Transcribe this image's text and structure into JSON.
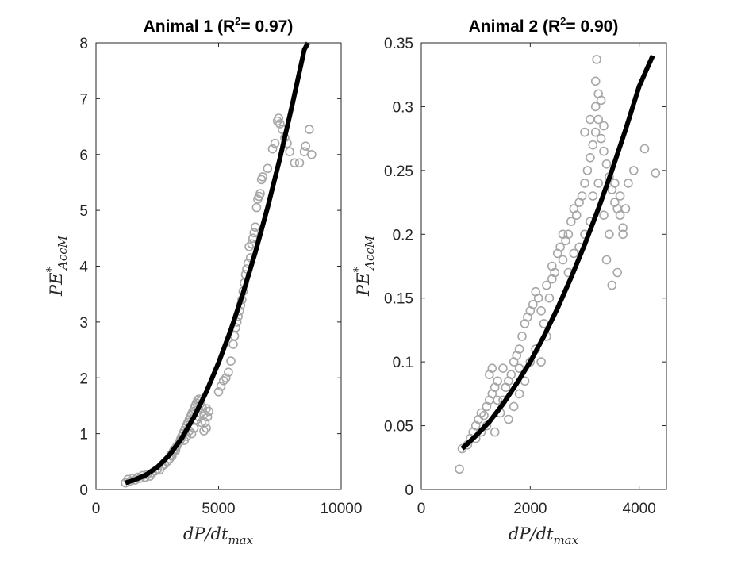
{
  "chart_data": [
    {
      "type": "scatter",
      "title_main": "Animal 1 (R",
      "title_sup": "2",
      "title_end": "= 0.97)",
      "xlabel_main": "dP/dt",
      "xlabel_sub": "max",
      "ylabel_main": "PE",
      "ylabel_sup": "*",
      "ylabel_sub": "AccM",
      "xlim": [
        0,
        10000
      ],
      "ylim": [
        0,
        8
      ],
      "xticks": [
        0,
        5000,
        10000
      ],
      "yticks": [
        0,
        1,
        2,
        3,
        4,
        5,
        6,
        7,
        8
      ],
      "xtick_labels": [
        "0",
        "5000",
        "10000"
      ],
      "ytick_labels": [
        "0",
        "1",
        "2",
        "3",
        "4",
        "5",
        "6",
        "7",
        "8"
      ],
      "grid": false,
      "marker_color": "#a6a6a6",
      "fit_color": "#000000",
      "scatter_points": [
        [
          1200,
          0.12
        ],
        [
          1300,
          0.18
        ],
        [
          1400,
          0.15
        ],
        [
          1500,
          0.2
        ],
        [
          1600,
          0.17
        ],
        [
          1700,
          0.22
        ],
        [
          1800,
          0.2
        ],
        [
          1900,
          0.25
        ],
        [
          2000,
          0.22
        ],
        [
          2100,
          0.27
        ],
        [
          2200,
          0.24
        ],
        [
          2300,
          0.3
        ],
        [
          2400,
          0.33
        ],
        [
          2500,
          0.36
        ],
        [
          2600,
          0.35
        ],
        [
          2700,
          0.42
        ],
        [
          2800,
          0.45
        ],
        [
          2900,
          0.5
        ],
        [
          3000,
          0.55
        ],
        [
          3050,
          0.62
        ],
        [
          3100,
          0.6
        ],
        [
          3150,
          0.68
        ],
        [
          3200,
          0.72
        ],
        [
          3250,
          0.7
        ],
        [
          3300,
          0.78
        ],
        [
          3400,
          0.85
        ],
        [
          3450,
          0.9
        ],
        [
          3500,
          0.95
        ],
        [
          3550,
          1.0
        ],
        [
          3600,
          1.05
        ],
        [
          3650,
          1.1
        ],
        [
          3700,
          1.15
        ],
        [
          3750,
          1.2
        ],
        [
          3800,
          1.25
        ],
        [
          3850,
          1.3
        ],
        [
          3900,
          1.35
        ],
        [
          3950,
          1.4
        ],
        [
          4000,
          1.45
        ],
        [
          4050,
          1.5
        ],
        [
          4100,
          1.55
        ],
        [
          4150,
          1.6
        ],
        [
          4200,
          1.62
        ],
        [
          4250,
          1.58
        ],
        [
          4300,
          1.5
        ],
        [
          4350,
          1.45
        ],
        [
          4400,
          1.35
        ],
        [
          4450,
          1.2
        ],
        [
          4500,
          1.1
        ],
        [
          4550,
          1.3
        ],
        [
          4600,
          1.4
        ],
        [
          3900,
          1.0
        ],
        [
          4000,
          1.1
        ],
        [
          4100,
          1.25
        ],
        [
          4200,
          1.3
        ],
        [
          4300,
          1.2
        ],
        [
          4400,
          1.05
        ],
        [
          3700,
          0.95
        ],
        [
          3600,
          0.88
        ],
        [
          3800,
          1.05
        ],
        [
          4500,
          1.45
        ],
        [
          5000,
          1.75
        ],
        [
          5100,
          1.85
        ],
        [
          5200,
          1.95
        ],
        [
          5300,
          2.0
        ],
        [
          5400,
          2.1
        ],
        [
          5500,
          2.3
        ],
        [
          5600,
          2.6
        ],
        [
          5650,
          2.75
        ],
        [
          5700,
          2.9
        ],
        [
          5750,
          3.0
        ],
        [
          5800,
          3.1
        ],
        [
          5850,
          3.2
        ],
        [
          5900,
          3.3
        ],
        [
          5950,
          3.4
        ],
        [
          6000,
          3.55
        ],
        [
          6050,
          3.7
        ],
        [
          6100,
          3.85
        ],
        [
          6150,
          3.95
        ],
        [
          6200,
          4.05
        ],
        [
          6300,
          4.15
        ],
        [
          6250,
          4.35
        ],
        [
          6350,
          4.4
        ],
        [
          6400,
          4.5
        ],
        [
          6450,
          4.6
        ],
        [
          6500,
          4.7
        ],
        [
          6550,
          5.05
        ],
        [
          6600,
          5.2
        ],
        [
          6650,
          5.25
        ],
        [
          6700,
          5.3
        ],
        [
          6750,
          5.55
        ],
        [
          6800,
          5.6
        ],
        [
          7000,
          5.75
        ],
        [
          7200,
          6.1
        ],
        [
          7300,
          6.2
        ],
        [
          7400,
          6.6
        ],
        [
          7450,
          6.65
        ],
        [
          7500,
          6.55
        ],
        [
          7600,
          6.45
        ],
        [
          7700,
          6.3
        ],
        [
          7800,
          6.2
        ],
        [
          7900,
          6.05
        ],
        [
          8100,
          5.85
        ],
        [
          8300,
          5.85
        ],
        [
          8500,
          6.05
        ],
        [
          8550,
          6.15
        ],
        [
          8700,
          6.45
        ],
        [
          8800,
          6.0
        ]
      ],
      "fit_curve": [
        [
          1200,
          0.12
        ],
        [
          1500,
          0.16
        ],
        [
          2000,
          0.25
        ],
        [
          2500,
          0.4
        ],
        [
          3000,
          0.62
        ],
        [
          3500,
          0.92
        ],
        [
          4000,
          1.3
        ],
        [
          4500,
          1.75
        ],
        [
          5000,
          2.27
        ],
        [
          5500,
          2.86
        ],
        [
          6000,
          3.52
        ],
        [
          6500,
          4.25
        ],
        [
          7000,
          5.05
        ],
        [
          7500,
          5.93
        ],
        [
          8000,
          6.88
        ],
        [
          8500,
          7.88
        ],
        [
          8650,
          8.0
        ]
      ]
    },
    {
      "type": "scatter",
      "title_main": "Animal 2 (R",
      "title_sup": "2",
      "title_end": "= 0.90)",
      "xlabel_main": "dP/dt",
      "xlabel_sub": "max",
      "ylabel_main": "PE",
      "ylabel_sup": "*",
      "ylabel_sub": "AccM",
      "xlim": [
        0,
        4500
      ],
      "ylim": [
        0,
        0.35
      ],
      "xticks": [
        0,
        2000,
        4000
      ],
      "yticks": [
        0,
        0.05,
        0.1,
        0.15,
        0.2,
        0.25,
        0.3,
        0.35
      ],
      "xtick_labels": [
        "0",
        "2000",
        "4000"
      ],
      "ytick_labels": [
        "0",
        "0.05",
        "0.1",
        "0.15",
        "0.2",
        "0.25",
        "0.3",
        "0.35"
      ],
      "grid": false,
      "marker_color": "#a6a6a6",
      "fit_color": "#000000",
      "scatter_points": [
        [
          700,
          0.016
        ],
        [
          750,
          0.032
        ],
        [
          850,
          0.035
        ],
        [
          900,
          0.04
        ],
        [
          950,
          0.045
        ],
        [
          1000,
          0.05
        ],
        [
          1050,
          0.055
        ],
        [
          1100,
          0.06
        ],
        [
          1150,
          0.058
        ],
        [
          1200,
          0.065
        ],
        [
          1250,
          0.07
        ],
        [
          1300,
          0.075
        ],
        [
          1350,
          0.08
        ],
        [
          1400,
          0.085
        ],
        [
          1300,
          0.095
        ],
        [
          1250,
          0.09
        ],
        [
          1200,
          0.05
        ],
        [
          1350,
          0.045
        ],
        [
          1450,
          0.06
        ],
        [
          1500,
          0.07
        ],
        [
          1550,
          0.08
        ],
        [
          1600,
          0.085
        ],
        [
          1650,
          0.09
        ],
        [
          1700,
          0.1
        ],
        [
          1750,
          0.105
        ],
        [
          1800,
          0.11
        ],
        [
          1850,
          0.12
        ],
        [
          1900,
          0.13
        ],
        [
          1950,
          0.135
        ],
        [
          2000,
          0.14
        ],
        [
          2050,
          0.145
        ],
        [
          2100,
          0.155
        ],
        [
          2150,
          0.15
        ],
        [
          2200,
          0.14
        ],
        [
          2250,
          0.13
        ],
        [
          2300,
          0.12
        ],
        [
          2350,
          0.15
        ],
        [
          2400,
          0.165
        ],
        [
          2450,
          0.17
        ],
        [
          2500,
          0.185
        ],
        [
          2550,
          0.19
        ],
        [
          2600,
          0.18
        ],
        [
          2650,
          0.195
        ],
        [
          2700,
          0.2
        ],
        [
          2750,
          0.21
        ],
        [
          2800,
          0.22
        ],
        [
          2850,
          0.215
        ],
        [
          2900,
          0.225
        ],
        [
          2950,
          0.23
        ],
        [
          3000,
          0.24
        ],
        [
          3050,
          0.25
        ],
        [
          3100,
          0.26
        ],
        [
          3150,
          0.27
        ],
        [
          3200,
          0.28
        ],
        [
          3250,
          0.29
        ],
        [
          3300,
          0.275
        ],
        [
          3350,
          0.265
        ],
        [
          3400,
          0.255
        ],
        [
          3450,
          0.245
        ],
        [
          3500,
          0.235
        ],
        [
          3550,
          0.225
        ],
        [
          3600,
          0.22
        ],
        [
          3650,
          0.215
        ],
        [
          3700,
          0.205
        ],
        [
          3750,
          0.22
        ],
        [
          3200,
          0.3
        ],
        [
          3250,
          0.31
        ],
        [
          3200,
          0.32
        ],
        [
          3220,
          0.337
        ],
        [
          3300,
          0.305
        ],
        [
          3350,
          0.285
        ],
        [
          3000,
          0.2
        ],
        [
          3100,
          0.21
        ],
        [
          2900,
          0.19
        ],
        [
          2800,
          0.185
        ],
        [
          3400,
          0.18
        ],
        [
          3500,
          0.16
        ],
        [
          3600,
          0.17
        ],
        [
          3700,
          0.2
        ],
        [
          3800,
          0.24
        ],
        [
          3900,
          0.25
        ],
        [
          4100,
          0.267
        ],
        [
          4300,
          0.248
        ],
        [
          1600,
          0.055
        ],
        [
          1700,
          0.065
        ],
        [
          1800,
          0.075
        ],
        [
          1900,
          0.085
        ],
        [
          2000,
          0.1
        ],
        [
          2100,
          0.11
        ],
        [
          2200,
          0.1
        ],
        [
          1000,
          0.04
        ],
        [
          1100,
          0.045
        ],
        [
          1400,
          0.07
        ],
        [
          1500,
          0.095
        ],
        [
          1800,
          0.095
        ],
        [
          2300,
          0.16
        ],
        [
          2400,
          0.175
        ],
        [
          2600,
          0.2
        ],
        [
          2700,
          0.17
        ],
        [
          3000,
          0.28
        ],
        [
          3100,
          0.29
        ],
        [
          3150,
          0.23
        ],
        [
          3250,
          0.24
        ],
        [
          3350,
          0.215
        ],
        [
          3450,
          0.2
        ],
        [
          3550,
          0.24
        ],
        [
          3650,
          0.23
        ]
      ],
      "fit_curve": [
        [
          750,
          0.032
        ],
        [
          1000,
          0.042
        ],
        [
          1250,
          0.053
        ],
        [
          1500,
          0.067
        ],
        [
          1750,
          0.083
        ],
        [
          2000,
          0.1
        ],
        [
          2250,
          0.12
        ],
        [
          2500,
          0.142
        ],
        [
          2750,
          0.166
        ],
        [
          3000,
          0.192
        ],
        [
          3250,
          0.22
        ],
        [
          3500,
          0.25
        ],
        [
          3750,
          0.282
        ],
        [
          4000,
          0.316
        ],
        [
          4250,
          0.34
        ]
      ]
    }
  ]
}
